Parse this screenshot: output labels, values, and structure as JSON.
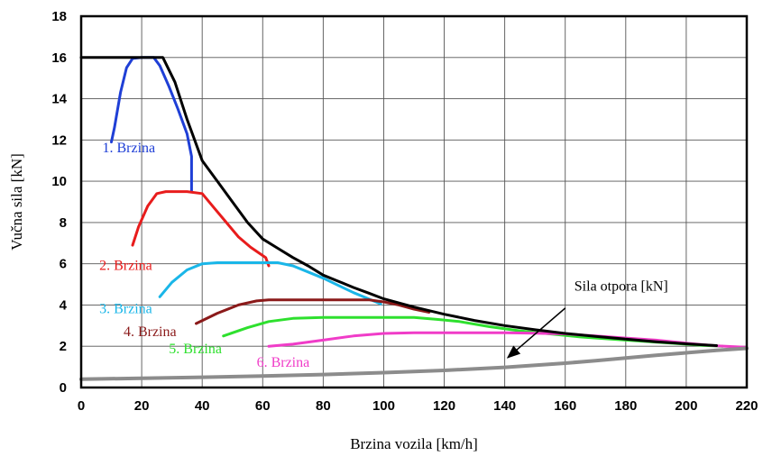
{
  "chart_data": {
    "type": "line",
    "xlabel": "Brzina vozila [km/h]",
    "ylabel": "Vučna sila [kN]",
    "xlim": [
      0,
      220
    ],
    "ylim": [
      0,
      18
    ],
    "xticks": [
      0,
      20,
      40,
      60,
      80,
      100,
      120,
      140,
      160,
      180,
      200,
      220
    ],
    "yticks": [
      0,
      2,
      4,
      6,
      8,
      10,
      12,
      14,
      16,
      18
    ],
    "grid": true,
    "series": [
      {
        "name": "1. Brzina",
        "color": "#1f3fd6",
        "points": [
          [
            10,
            11.9
          ],
          [
            11,
            12.6
          ],
          [
            13,
            14.3
          ],
          [
            15,
            15.5
          ],
          [
            17,
            15.95
          ],
          [
            20,
            16.0
          ],
          [
            24,
            16.0
          ],
          [
            26,
            15.6
          ],
          [
            29,
            14.6
          ],
          [
            32,
            13.5
          ],
          [
            35,
            12.3
          ],
          [
            36.5,
            11.2
          ],
          [
            36.5,
            9.5
          ]
        ]
      },
      {
        "name": "2. Brzina",
        "color": "#e81c1c",
        "points": [
          [
            17,
            6.9
          ],
          [
            19,
            7.8
          ],
          [
            22,
            8.8
          ],
          [
            25,
            9.4
          ],
          [
            28,
            9.5
          ],
          [
            35,
            9.5
          ],
          [
            40,
            9.4
          ],
          [
            44,
            8.7
          ],
          [
            48,
            8.0
          ],
          [
            52,
            7.3
          ],
          [
            56,
            6.8
          ],
          [
            59,
            6.5
          ],
          [
            61,
            6.3
          ],
          [
            62,
            5.9
          ]
        ]
      },
      {
        "name": "3. Brzina",
        "color": "#1ab6e8",
        "points": [
          [
            26,
            4.4
          ],
          [
            30,
            5.1
          ],
          [
            35,
            5.7
          ],
          [
            40,
            6.0
          ],
          [
            45,
            6.05
          ],
          [
            65,
            6.05
          ],
          [
            70,
            5.9
          ],
          [
            75,
            5.6
          ],
          [
            80,
            5.3
          ],
          [
            85,
            4.95
          ],
          [
            90,
            4.6
          ],
          [
            95,
            4.3
          ],
          [
            99,
            4.05
          ]
        ]
      },
      {
        "name": "4. Brzina",
        "color": "#8b1a1a",
        "points": [
          [
            38,
            3.1
          ],
          [
            45,
            3.6
          ],
          [
            52,
            4.0
          ],
          [
            58,
            4.2
          ],
          [
            62,
            4.25
          ],
          [
            95,
            4.25
          ],
          [
            100,
            4.15
          ],
          [
            105,
            4.0
          ],
          [
            110,
            3.8
          ],
          [
            115,
            3.65
          ]
        ]
      },
      {
        "name": "5. Brzina",
        "color": "#2ee02e",
        "points": [
          [
            47,
            2.5
          ],
          [
            55,
            2.9
          ],
          [
            62,
            3.2
          ],
          [
            70,
            3.35
          ],
          [
            80,
            3.4
          ],
          [
            110,
            3.4
          ],
          [
            118,
            3.3
          ],
          [
            125,
            3.2
          ],
          [
            135,
            2.95
          ],
          [
            145,
            2.75
          ],
          [
            155,
            2.6
          ],
          [
            165,
            2.45
          ],
          [
            175,
            2.35
          ],
          [
            185,
            2.25
          ],
          [
            195,
            2.15
          ],
          [
            205,
            2.05
          ],
          [
            212,
            2.0
          ]
        ]
      },
      {
        "name": "6. Brzina",
        "color": "#f03cc8",
        "points": [
          [
            62,
            2.0
          ],
          [
            70,
            2.1
          ],
          [
            80,
            2.3
          ],
          [
            90,
            2.5
          ],
          [
            100,
            2.62
          ],
          [
            110,
            2.65
          ],
          [
            140,
            2.65
          ],
          [
            150,
            2.63
          ],
          [
            160,
            2.6
          ],
          [
            170,
            2.5
          ],
          [
            180,
            2.4
          ],
          [
            190,
            2.3
          ],
          [
            200,
            2.15
          ],
          [
            210,
            2.02
          ],
          [
            220,
            1.95
          ]
        ]
      },
      {
        "name": "",
        "color": "#000000",
        "points": [
          [
            0,
            16.0
          ],
          [
            27,
            16.0
          ],
          [
            31,
            14.8
          ],
          [
            35,
            13.0
          ],
          [
            40,
            11.0
          ],
          [
            45,
            10.0
          ],
          [
            50,
            9.0
          ],
          [
            55,
            8.0
          ],
          [
            60,
            7.2
          ],
          [
            65,
            6.75
          ],
          [
            70,
            6.3
          ],
          [
            75,
            5.9
          ],
          [
            80,
            5.45
          ],
          [
            85,
            5.15
          ],
          [
            90,
            4.85
          ],
          [
            95,
            4.58
          ],
          [
            100,
            4.3
          ],
          [
            110,
            3.9
          ],
          [
            120,
            3.55
          ],
          [
            130,
            3.25
          ],
          [
            140,
            3.0
          ],
          [
            150,
            2.8
          ],
          [
            160,
            2.62
          ],
          [
            170,
            2.48
          ],
          [
            180,
            2.35
          ],
          [
            190,
            2.22
          ],
          [
            200,
            2.12
          ],
          [
            210,
            2.03
          ]
        ]
      },
      {
        "name": "Sila otpora [kN]",
        "color": "#8c8c8c",
        "points": [
          [
            0,
            0.4
          ],
          [
            20,
            0.45
          ],
          [
            40,
            0.5
          ],
          [
            60,
            0.56
          ],
          [
            80,
            0.63
          ],
          [
            100,
            0.72
          ],
          [
            120,
            0.83
          ],
          [
            140,
            0.98
          ],
          [
            160,
            1.18
          ],
          [
            170,
            1.3
          ],
          [
            180,
            1.43
          ],
          [
            190,
            1.56
          ],
          [
            200,
            1.68
          ],
          [
            210,
            1.8
          ],
          [
            220,
            1.9
          ]
        ]
      }
    ],
    "labels": [
      {
        "text": "1. Brzina",
        "x": 7,
        "y": 11.4,
        "color": "#1f3fd6"
      },
      {
        "text": "2. Brzina",
        "x": 6,
        "y": 5.7,
        "color": "#e81c1c"
      },
      {
        "text": "3. Brzina",
        "x": 6,
        "y": 3.6,
        "color": "#1ab6e8"
      },
      {
        "text": "4. Brzina",
        "x": 14,
        "y": 2.5,
        "color": "#8b1a1a"
      },
      {
        "text": "5. Brzina",
        "x": 29,
        "y": 1.65,
        "color": "#2ee02e"
      },
      {
        "text": "6. Brzina",
        "x": 58,
        "y": 1.0,
        "color": "#f03cc8"
      }
    ],
    "annotation": {
      "text": "Sila otpora [kN]",
      "text_x": 163,
      "text_y": 4.7,
      "arrow_from": [
        160,
        3.85
      ],
      "arrow_to": [
        141,
        1.45
      ]
    }
  }
}
